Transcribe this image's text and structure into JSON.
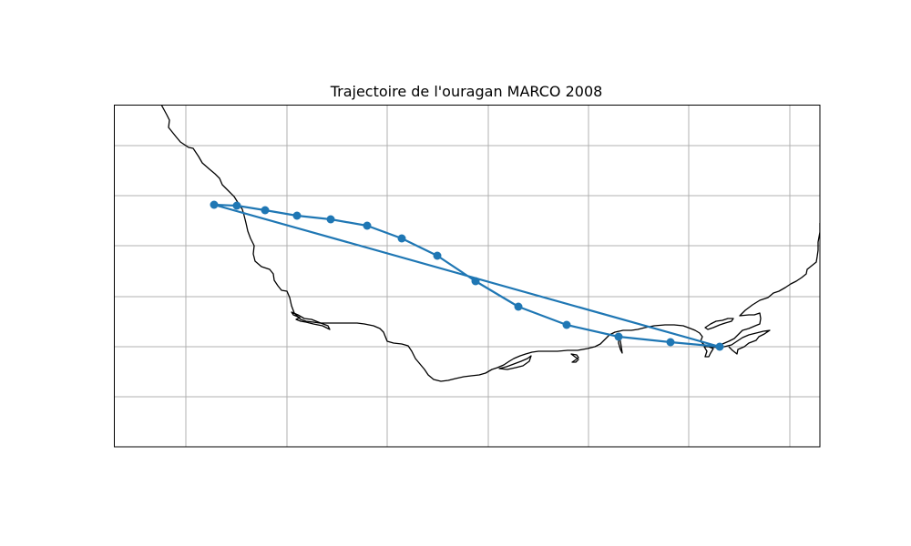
{
  "figure": {
    "title": "Trajectoire de l'ouragan MARCO 2008"
  },
  "map": {
    "type": "track-map",
    "gridlines": true,
    "axis_tick_labels_shown": false,
    "colors": {
      "track": "#1f77b4",
      "coastline": "#000000",
      "grid": "#b0b0b0"
    }
  },
  "track": {
    "name": "MARCO",
    "year": 2008,
    "point_count": 14
  }
}
